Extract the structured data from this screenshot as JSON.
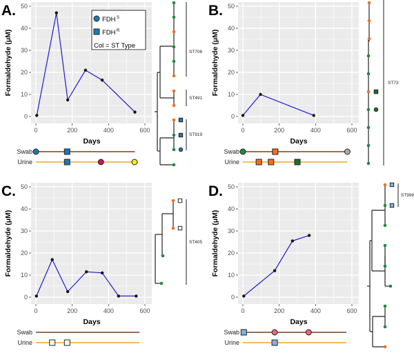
{
  "chart_data": [
    {
      "type": "line",
      "panel_label": "A.",
      "xlabel": "Days",
      "ylabel": "Formaldehyde (μM)",
      "xlim": [
        0,
        600
      ],
      "ylim": [
        0,
        50
      ],
      "xticks": [
        "0",
        "200",
        "400",
        "600"
      ],
      "yticks": [
        "0",
        "10",
        "20",
        "30",
        "40",
        "50"
      ],
      "grid": true,
      "x": [
        5,
        113,
        175,
        273,
        365,
        545
      ],
      "y": [
        0.5,
        47,
        7.5,
        21,
        16.5,
        2
      ],
      "legend": {
        "placement": "top-right",
        "items": [
          {
            "marker": "circle",
            "text": "FDH",
            "sup": "S"
          },
          {
            "marker": "square",
            "text": "FDH",
            "sup": "R"
          },
          {
            "marker": "none",
            "text": "Col = ST Type",
            "sup": ""
          }
        ]
      },
      "timeline": {
        "swab_label": "Swab",
        "urine_label": "Urine",
        "end": 545,
        "swab": [
          {
            "day": 0,
            "marker": "circle",
            "color": "#1f78b4"
          },
          {
            "day": 172,
            "marker": "square",
            "color": "#1f78b4"
          }
        ],
        "urine": [
          {
            "day": 172,
            "marker": "square",
            "color": "#1f78b4"
          },
          {
            "day": 358,
            "marker": "circle",
            "color": "#c2185b"
          },
          {
            "day": 543,
            "marker": "circle",
            "color": "#f2ee1a"
          }
        ]
      },
      "tree": {
        "tips": [
          {
            "color": "#1e8a3c"
          },
          {
            "color": "#1e8a3c"
          },
          {
            "color": "#f07020"
          },
          {
            "color": "#1e8a3c"
          },
          {
            "color": "#1e8a3c"
          },
          {
            "color": "#f07020"
          },
          {
            "color": "#f07020"
          },
          {
            "color": "#f07020"
          },
          {
            "color": "#f07020",
            "marker": "square",
            "mcolor": "#1f78b4"
          },
          {
            "color": "#1e8a3c",
            "marker": "square",
            "mcolor": "#1f78b4"
          },
          {
            "color": "#1e8a3c",
            "marker": "circle",
            "mcolor": "#1f78b4"
          },
          {
            "color": "#1e8a3c"
          }
        ],
        "clades": [
          "ST706",
          "ST491",
          "ST919"
        ]
      }
    },
    {
      "type": "line",
      "panel_label": "B.",
      "xlabel": "Days",
      "ylabel": "Formaldehyde (μM)",
      "xlim": [
        0,
        600
      ],
      "ylim": [
        0,
        50
      ],
      "xticks": [
        "0",
        "200",
        "400",
        "600"
      ],
      "yticks": [
        "0",
        "10",
        "20",
        "30",
        "40",
        "50"
      ],
      "grid": true,
      "x": [
        0,
        97,
        390
      ],
      "y": [
        0.5,
        10,
        0.5
      ],
      "timeline": {
        "swab_label": "Swab",
        "urine_label": "Urine",
        "end": 575,
        "swab": [
          {
            "day": 0,
            "marker": "circle",
            "color": "#1e8a3c"
          },
          {
            "day": 178,
            "marker": "square",
            "color": "#f07020"
          },
          {
            "day": 575,
            "marker": "circle",
            "color": "#aaaaaa"
          }
        ],
        "urine": [
          {
            "day": 88,
            "marker": "square",
            "color": "#f07020"
          },
          {
            "day": 155,
            "marker": "square",
            "color": "#f07020"
          },
          {
            "day": 300,
            "marker": "square",
            "color": "#1e6b30"
          }
        ]
      },
      "tree": {
        "tips": [
          {
            "color": "#f07020"
          },
          {
            "color": "#f07020"
          },
          {
            "color": "#f07020"
          },
          {
            "color": "#1e8a3c"
          },
          {
            "color": "#1e8a3c"
          },
          {
            "color": "#f07020",
            "marker": "square",
            "mcolor": "#1e6b30"
          },
          {
            "color": "#1e8a3c",
            "marker": "circle",
            "mcolor": "#1e6b30"
          },
          {
            "color": "#1e8a3c"
          },
          {
            "color": "#1e8a3c"
          },
          {
            "color": "#1e8a3c"
          }
        ],
        "clades": [
          "ST73"
        ]
      }
    },
    {
      "type": "line",
      "panel_label": "C.",
      "xlabel": "Days",
      "ylabel": "Formaldehyde (μM)",
      "xlim": [
        0,
        600
      ],
      "ylim": [
        0,
        50
      ],
      "xticks": [
        "0",
        "200",
        "400",
        "600"
      ],
      "yticks": [
        "0",
        "10",
        "20",
        "30",
        "40",
        "50"
      ],
      "grid": true,
      "x": [
        3,
        90,
        175,
        278,
        365,
        455,
        552
      ],
      "y": [
        0.5,
        17,
        2.5,
        11.5,
        11,
        0.5,
        0.5
      ],
      "timeline": {
        "swab_label": "Swab",
        "urine_label": "Urine",
        "end": 570,
        "swab": [],
        "urine": [
          {
            "day": 90,
            "marker": "square",
            "color": "#ffffff"
          },
          {
            "day": 172,
            "marker": "square",
            "color": "#ffffff"
          }
        ]
      },
      "tree": {
        "tips": [
          {
            "color": "#f07020",
            "marker": "square",
            "mcolor": "#ffffff"
          },
          {
            "color": "#f07020",
            "marker": "square",
            "mcolor": "#ffffff"
          },
          {
            "color": "#1e8a3c"
          },
          {
            "color": "#1e8a3c"
          }
        ],
        "clades": [
          "ST405"
        ]
      }
    },
    {
      "type": "line",
      "panel_label": "D.",
      "xlabel": "Days",
      "ylabel": "Formaldehyde (μM)",
      "xlim": [
        0,
        600
      ],
      "ylim": [
        0,
        50
      ],
      "xticks": [
        "0",
        "200",
        "400",
        "600"
      ],
      "yticks": [
        "0",
        "10",
        "20",
        "30",
        "40",
        "50"
      ],
      "grid": true,
      "x": [
        5,
        175,
        273,
        365
      ],
      "y": [
        0.5,
        12,
        25.5,
        28
      ],
      "timeline": {
        "swab_label": "Swab",
        "urine_label": "Urine",
        "end": 570,
        "swab": [
          {
            "day": 5,
            "marker": "square",
            "color": "#7fb5e0"
          },
          {
            "day": 175,
            "marker": "circle",
            "color": "#e8697a"
          },
          {
            "day": 362,
            "marker": "circle",
            "color": "#e8697a"
          }
        ],
        "urine": [
          {
            "day": 175,
            "marker": "square",
            "color": "#7fb5e0"
          }
        ]
      },
      "tree": {
        "tips": [
          {
            "color": "#f07020",
            "marker": "square",
            "mcolor": "#7fb5e0"
          },
          {
            "color": "#1e8a3c",
            "marker": "square",
            "mcolor": "#7fb5e0"
          },
          {
            "color": "#1e8a3c"
          },
          {
            "color": "#1e8a3c"
          },
          {
            "color": "#1e8a3c"
          },
          {
            "color": "#1e8a3c"
          },
          {
            "color": "#1e8a3c"
          },
          {
            "color": "#1e8a3c"
          },
          {
            "color": "#f07020"
          }
        ],
        "clades": [
          "ST998"
        ]
      }
    }
  ],
  "colors": {
    "line": "#1a1acc",
    "point": "#111111",
    "swab_line": "#8b5a3c",
    "urine_line": "#f5b041",
    "plot_bg": "#ebebeb"
  }
}
